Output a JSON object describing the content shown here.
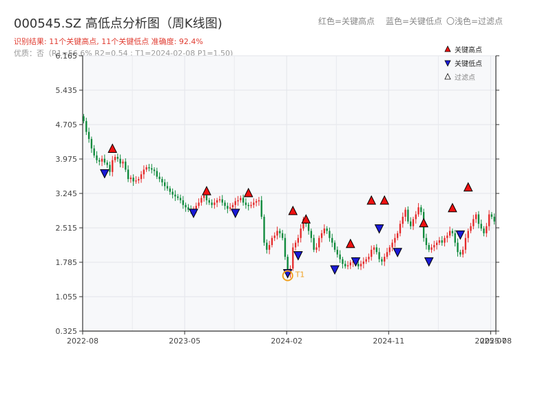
{
  "title": "000545.SZ 高低点分析图（周K线图)",
  "legend_top": {
    "red": "红色=关键高点",
    "blue": "蓝色=关键低点",
    "light": "〇浅色=过滤点"
  },
  "subtitle1": "识别结果: 11个关键高点, 11个关键低点   准确度: 92.4%",
  "subtitle2": "优质：否（R1=56.6%  R2=0.54 ; T1=2024-02-08 P1=1.50)",
  "colors": {
    "up": "#e52b2b",
    "down": "#0f8a3c",
    "high": "#ee1111",
    "low": "#1a1ad6",
    "t1": "#f0a020"
  },
  "chart_data": {
    "type": "candlestick",
    "ylim": [
      0.325,
      6.165
    ],
    "yticks": [
      "0.325",
      "1.055",
      "1.785",
      "2.515",
      "3.245",
      "3.975",
      "4.705",
      "5.435",
      "6.165"
    ],
    "xticks": [
      {
        "label": "2022-08",
        "i": 0
      },
      {
        "label": "2023-05",
        "i": 39
      },
      {
        "label": "2024-02",
        "i": 78
      },
      {
        "label": "2024-11",
        "i": 117
      },
      {
        "label": "2025-07",
        "i": 156
      },
      {
        "label": "2025-08",
        "i": 158
      }
    ],
    "n_weeks": 158,
    "closes": [
      4.78,
      4.55,
      4.4,
      4.2,
      4.05,
      3.95,
      3.92,
      3.98,
      3.9,
      3.85,
      3.7,
      3.95,
      4.02,
      3.98,
      3.88,
      3.92,
      3.75,
      3.55,
      3.58,
      3.5,
      3.52,
      3.55,
      3.65,
      3.75,
      3.8,
      3.78,
      3.75,
      3.72,
      3.6,
      3.55,
      3.48,
      3.4,
      3.35,
      3.28,
      3.22,
      3.18,
      3.15,
      3.1,
      3.0,
      2.95,
      2.9,
      2.88,
      2.92,
      2.98,
      3.05,
      3.15,
      3.2,
      3.1,
      3.05,
      3.0,
      3.05,
      3.1,
      3.12,
      3.05,
      2.98,
      2.92,
      2.95,
      3.0,
      3.08,
      3.1,
      3.15,
      3.05,
      3.0,
      2.98,
      3.0,
      3.05,
      3.08,
      3.1,
      2.75,
      2.2,
      2.05,
      2.15,
      2.3,
      2.35,
      2.45,
      2.4,
      2.3,
      1.9,
      1.55,
      1.65,
      2.1,
      2.2,
      2.3,
      2.5,
      2.7,
      2.6,
      2.45,
      2.3,
      2.05,
      2.1,
      2.3,
      2.4,
      2.5,
      2.45,
      2.3,
      2.2,
      2.05,
      1.95,
      1.85,
      1.75,
      1.7,
      1.72,
      1.78,
      1.8,
      1.75,
      1.7,
      1.75,
      1.8,
      1.85,
      1.9,
      2.05,
      2.1,
      2.0,
      1.85,
      1.8,
      1.9,
      2.0,
      2.1,
      2.2,
      2.3,
      2.4,
      2.6,
      2.75,
      2.9,
      2.65,
      2.55,
      2.7,
      2.8,
      2.95,
      2.85,
      2.3,
      2.15,
      2.05,
      2.1,
      2.15,
      2.2,
      2.25,
      2.2,
      2.3,
      2.35,
      2.45,
      2.4,
      2.2,
      2.0,
      1.95,
      2.05,
      2.3,
      2.45,
      2.55,
      2.7,
      2.8,
      2.6,
      2.5,
      2.4,
      2.55,
      2.8,
      2.75,
      2.65
    ],
    "key_highs": [
      {
        "i": 11,
        "y": 4.1
      },
      {
        "i": 47,
        "y": 3.2
      },
      {
        "i": 63,
        "y": 3.16
      },
      {
        "i": 80,
        "y": 2.78
      },
      {
        "i": 85,
        "y": 2.6
      },
      {
        "i": 102,
        "y": 2.08
      },
      {
        "i": 110,
        "y": 3.0
      },
      {
        "i": 115,
        "y": 3.0
      },
      {
        "i": 130,
        "y": 2.52
      },
      {
        "i": 141,
        "y": 2.84
      },
      {
        "i": 147,
        "y": 3.28
      }
    ],
    "key_lows": [
      {
        "i": 8,
        "y": 3.62
      },
      {
        "i": 42,
        "y": 2.78
      },
      {
        "i": 58,
        "y": 2.78
      },
      {
        "i": 82,
        "y": 1.88
      },
      {
        "i": 96,
        "y": 1.58
      },
      {
        "i": 104,
        "y": 1.75
      },
      {
        "i": 113,
        "y": 2.45
      },
      {
        "i": 120,
        "y": 1.95
      },
      {
        "i": 132,
        "y": 1.75
      },
      {
        "i": 144,
        "y": 2.32
      },
      {
        "i": 78,
        "y": 1.5
      }
    ],
    "t1": {
      "i": 78,
      "y": 1.5,
      "label": "T1"
    },
    "legend": [
      "关键高点",
      "关键低点",
      "过滤点"
    ]
  }
}
